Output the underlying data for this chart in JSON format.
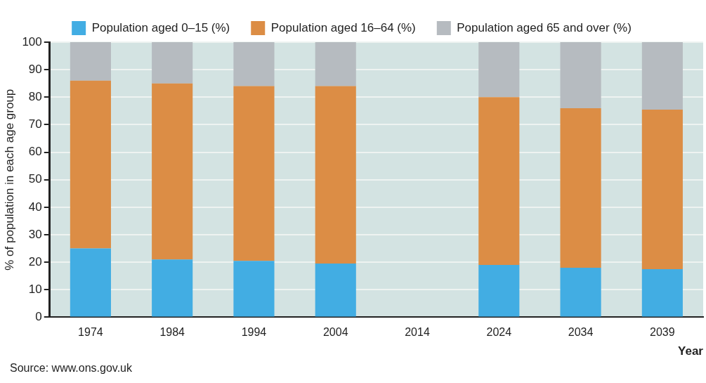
{
  "chart_data": {
    "type": "bar",
    "stacked": true,
    "xlabel": "Year",
    "ylabel": "% of population in each age group",
    "categories": [
      "1974",
      "1984",
      "1994",
      "2004",
      "2014",
      "2024",
      "2034",
      "2039"
    ],
    "series": [
      {
        "name": "Population aged 0–15 (%)",
        "color": "#42ade3",
        "values": [
          25,
          21,
          20.5,
          19.5,
          null,
          19,
          18,
          17.5
        ]
      },
      {
        "name": "Population aged 16–64 (%)",
        "color": "#dc8d45",
        "values": [
          61,
          64,
          63.5,
          64.5,
          null,
          61,
          58,
          58
        ]
      },
      {
        "name": "Population aged 65 and over (%)",
        "color": "#b6bbc0",
        "values": [
          14,
          15,
          16,
          16,
          null,
          20,
          24,
          24.5
        ]
      }
    ],
    "ylim": [
      0,
      100
    ],
    "yticks": [
      0,
      10,
      20,
      30,
      40,
      50,
      60,
      70,
      80,
      90,
      100
    ],
    "grid": "y",
    "legend": "top",
    "annotations": [
      "Source: www.ons.gov.uk"
    ]
  }
}
